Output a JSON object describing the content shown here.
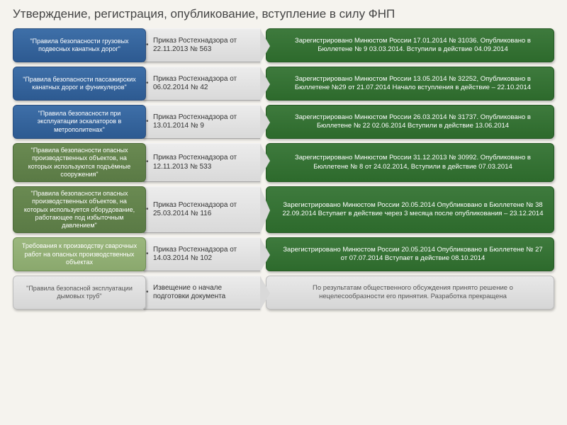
{
  "title": "Утверждение, регистрация, опубликование, вступление в силу ФНП",
  "rows": [
    {
      "col1_class": "blue",
      "col3_class": "green",
      "rule": "\"Правила безопасности грузовых подвесных канатных дорог\"",
      "order": "Приказ Ростехнадзора от 22.11.2013 № 563",
      "reg": "Зарегистрировано Минюстом России 17.01.2014 № 31036. Опубликовано в Бюллетене № 9 03.03.2014. Вступили в действие 04.09.2014"
    },
    {
      "col1_class": "blue",
      "col3_class": "green",
      "rule": "\"Правила безопасности пассажирских канатных дорог и фуникулеров\"",
      "order": "Приказ Ростехнадзора от 06.02.2014 № 42",
      "reg": "Зарегистрировано Минюстом России 13.05.2014 № 32252, Опубликовано в Бюллетене №29 от 21.07.2014 Начало вступления в действие – 22.10.2014"
    },
    {
      "col1_class": "blue",
      "col3_class": "green",
      "rule": "\"Правила безопасности при эксплуатации эскалаторов в метрополитенах\"",
      "order": "Приказ Ростехнадзора от 13.01.2014 № 9",
      "reg": "Зарегистрировано Минюстом России 26.03.2014 № 31737. Опубликовано в Бюллетене № 22 02.06.2014 Вступили в действие 13.06.2014"
    },
    {
      "col1_class": "green-dark",
      "col3_class": "green",
      "rule": "\"Правила безопасности опасных производственных объектов, на которых используются подъёмные сооружения\"",
      "order": "Приказ Ростехнадзора от 12.11.2013 № 533",
      "reg": "Зарегистрировано Минюстом России 31.12.2013 № 30992. Опубликовано в Бюллетене № 8 от 24.02.2014, Вступили в действие 07.03.2014"
    },
    {
      "col1_class": "green-dark",
      "col3_class": "green",
      "tall": true,
      "rule": "\"Правила безопасности опасных производственных объектов, на которых используется оборудование, работающее под избыточным давлением\"",
      "order": "Приказ Ростехнадзора от 25.03.2014 № 116",
      "reg": "Зарегистрировано Минюстом России 20.05.2014 Опубликовано в Бюллетене № 38 22.09.2014 Вступает в действие через 3 месяца после опубликования – 23.12.2014"
    },
    {
      "col1_class": "green-light",
      "col3_class": "green",
      "rule": "Требования к производству сварочных работ на опасных производственных объектах",
      "order": "Приказ Ростехнадзора от 14.03.2014 № 102",
      "reg": "Зарегистрировано Минюстом России 20.05.2014 Опубликовано в Бюллетене № 27 от 07.07.2014 Вступает в действие 08.10.2014"
    },
    {
      "col1_class": "grey",
      "col3_class": "grey",
      "rule": "\"Правила безопасной эксплуатации дымовых труб\"",
      "order": "Извещение о начале подготовки документа",
      "reg": "По результатам общественного обсуждения принято решение о нецелесообразности его принятия. Разработка прекращена"
    }
  ]
}
